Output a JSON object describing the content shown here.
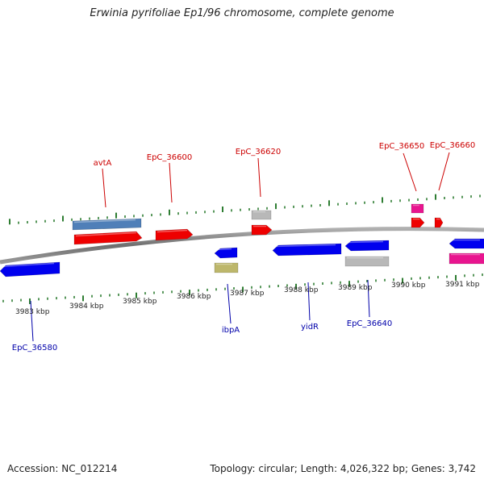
{
  "title": "Erwinia pyrifoliae Ep1/96 chromosome, complete genome",
  "footer": {
    "accession": "Accession: NC_012214",
    "stats": "Topology: circular; Length: 4,026,322 bp; Genes: 3,742"
  },
  "colors": {
    "forward_label": "#cc0000",
    "reverse_label": "#0000aa",
    "tick": "#2e7d32",
    "backbone": "#7a7a7a",
    "red_gene": "#ee0000",
    "blue_gene": "#0000ee",
    "steelblue_gene": "#4f7fb8",
    "gray_gene": "#b8b8b8",
    "khaki_gene": "#bdb76b",
    "pink_gene": "#e8158f"
  },
  "scale_labels": [
    "3983 kbp",
    "3984 kbp",
    "3985 kbp",
    "3986 kbp",
    "3987 kbp",
    "3988 kbp",
    "3989 kbp",
    "3990 kbp",
    "3991 kbp"
  ],
  "gene_labels_top": [
    "avtA",
    "EpC_36600",
    "EpC_36620",
    "EpC_36650",
    "EpC_36660"
  ],
  "gene_labels_bottom": [
    "EpC_36580",
    "ibpA",
    "yidR",
    "EpC_36640"
  ]
}
